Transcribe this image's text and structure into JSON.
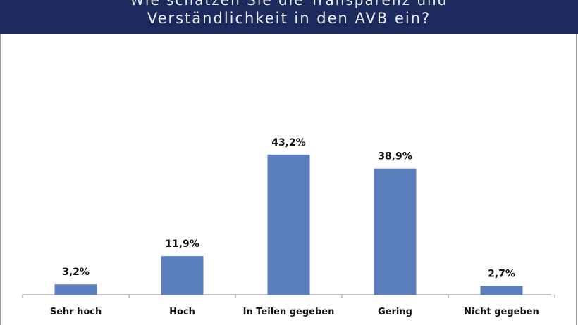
{
  "header": {
    "title_line1": "Wie schätzen Sie die Transparenz und",
    "title_line2": "Verständlichkeit in den AVB ein?"
  },
  "colors": {
    "header_bg": "#1c2a5e",
    "bar": "#5b7fbe"
  },
  "chart_data": {
    "type": "bar",
    "title": "Wie schätzen Sie die Transparenz und Verständlichkeit in den AVB ein?",
    "categories": [
      "Sehr hoch",
      "Hoch",
      "In Teilen gegeben",
      "Gering",
      "Nicht gegeben"
    ],
    "values": [
      3.2,
      11.9,
      43.2,
      38.9,
      2.7
    ],
    "value_labels": [
      "3,2%",
      "11,9%",
      "43,2%",
      "38,9%",
      "2,7%"
    ],
    "ylim": [
      0,
      50
    ],
    "grid": false,
    "legend": "none"
  }
}
